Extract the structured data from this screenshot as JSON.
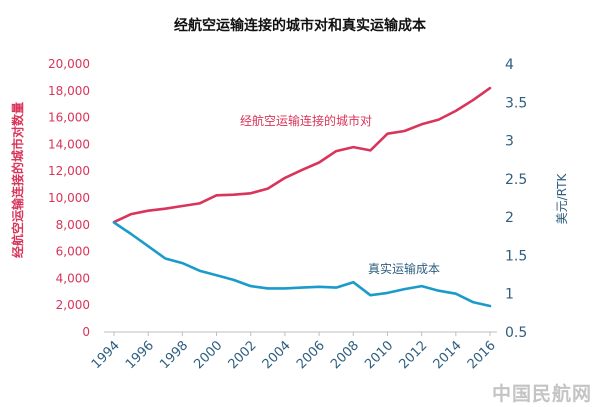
{
  "chart_data": {
    "type": "line",
    "title": "经航空运输连接的城市对和真实运输成本",
    "x": [
      1994,
      1995,
      1996,
      1997,
      1998,
      1999,
      2000,
      2001,
      2002,
      2003,
      2004,
      2005,
      2006,
      2007,
      2008,
      2009,
      2010,
      2011,
      2012,
      2013,
      2014,
      2015,
      2016
    ],
    "x_ticks": [
      "1994",
      "1996",
      "1998",
      "2000",
      "2002",
      "2004",
      "2006",
      "2008",
      "2010",
      "2012",
      "2014",
      "2016"
    ],
    "y_left": {
      "label": "经航空运输连接的城市对数量",
      "lim": [
        0,
        20000
      ],
      "ticks": [
        "0",
        "2,000",
        "4,000",
        "6,000",
        "8,000",
        "10,000",
        "12,000",
        "14,000",
        "16,000",
        "18,000",
        "20,000"
      ],
      "color": "#d9345a"
    },
    "y_right": {
      "label": "美元/RTK",
      "lim": [
        0.5,
        4
      ],
      "ticks": [
        "0.5",
        "1",
        "1.5",
        "2",
        "2.5",
        "3",
        "3.5",
        "4"
      ],
      "color": "#1a9bc9"
    },
    "grid": false,
    "series": [
      {
        "name": "经航空运输连接的城市对",
        "axis": "left",
        "color": "#d9345a",
        "values": [
          8200,
          8800,
          9050,
          9200,
          9400,
          9600,
          10200,
          10250,
          10350,
          10700,
          11500,
          12100,
          12650,
          13500,
          13800,
          13550,
          14800,
          15000,
          15500,
          15850,
          16500,
          17300,
          18200
        ]
      },
      {
        "name": "真实运输成本",
        "axis": "right",
        "color": "#1a9bc9",
        "values": [
          1.93,
          1.78,
          1.62,
          1.46,
          1.4,
          1.3,
          1.24,
          1.18,
          1.1,
          1.07,
          1.07,
          1.08,
          1.09,
          1.08,
          1.15,
          0.98,
          1.01,
          1.06,
          1.1,
          1.04,
          1.0,
          0.89,
          0.84
        ]
      }
    ]
  },
  "watermark": "中国民航网"
}
